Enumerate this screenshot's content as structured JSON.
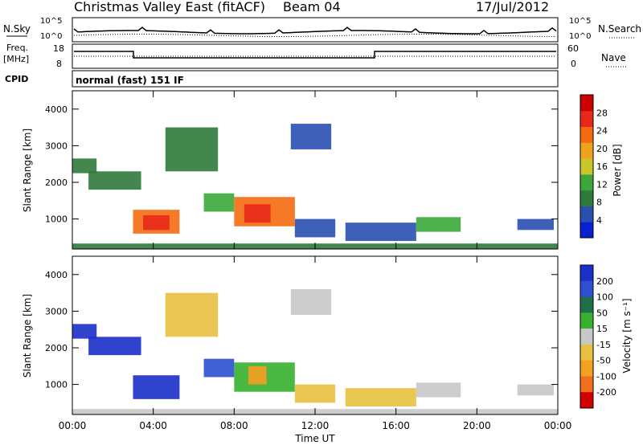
{
  "header": {
    "station": "Christmas Valley East (fitACF)",
    "beam": "Beam 04",
    "date": "17/Jul/2012"
  },
  "top_panels": {
    "nsky_label": "N.Sky",
    "nsearch_label": "N.Search",
    "freq_label_line1": "Freq.",
    "freq_label_line2": "[MHz]",
    "nave_label": "Nave",
    "cpid_label": "CPID",
    "cpid_value": "normal (fast) 151 IF",
    "noise_ticks_left": [
      "10^5",
      "10^0"
    ],
    "noise_ticks_right": [
      "10^5",
      "10^0"
    ],
    "freq_ticks": [
      "18",
      "8"
    ],
    "nave_ticks": [
      "60",
      "0"
    ]
  },
  "xaxis": {
    "label": "Time UT",
    "ticks": [
      "00:00",
      "04:00",
      "08:00",
      "12:00",
      "16:00",
      "20:00",
      "00:00"
    ]
  },
  "colors": {
    "power_scale": [
      "#0a1ed2",
      "#2a4fb0",
      "#2f7a3c",
      "#3aa83a",
      "#c9c52a",
      "#f0a21c",
      "#f46a10",
      "#e8281a",
      "#cc0000"
    ],
    "velocity_scale": [
      "#1a2fc8",
      "#2e4fd0",
      "#1f6f4a",
      "#38b030",
      "#90d840",
      "#c8c8c8",
      "#e8c040",
      "#f4a020",
      "#f07020",
      "#e83020",
      "#d00000"
    ]
  },
  "chart_data": [
    {
      "type": "heatmap",
      "title": "Power",
      "xlabel": "Time UT",
      "ylabel": "Slant Range [km]",
      "colorbar_label": "Power [dB]",
      "colorbar_ticks": [
        "4",
        "8",
        "12",
        "16",
        "20",
        "24",
        "28"
      ],
      "yticks": [
        "1000",
        "2000",
        "3000",
        "4000"
      ],
      "x_range_hours": [
        0,
        24
      ],
      "y_range_km": [
        180,
        4500
      ],
      "regions": [
        {
          "t_start": 0.0,
          "t_end": 24.0,
          "r_start": 180,
          "r_end": 330,
          "value": 10
        },
        {
          "t_start": 0.0,
          "t_end": 1.2,
          "r_start": 2250,
          "r_end": 2650,
          "value": 9
        },
        {
          "t_start": 0.8,
          "t_end": 3.4,
          "r_start": 1800,
          "r_end": 2300,
          "value": 10
        },
        {
          "t_start": 3.0,
          "t_end": 5.3,
          "r_start": 600,
          "r_end": 1250,
          "value": 24
        },
        {
          "t_start": 3.5,
          "t_end": 4.8,
          "r_start": 700,
          "r_end": 1100,
          "value": 28
        },
        {
          "t_start": 4.6,
          "t_end": 7.2,
          "r_start": 2300,
          "r_end": 3500,
          "value": 9
        },
        {
          "t_start": 6.5,
          "t_end": 8.0,
          "r_start": 1200,
          "r_end": 1700,
          "value": 12
        },
        {
          "t_start": 8.0,
          "t_end": 11.0,
          "r_start": 800,
          "r_end": 1600,
          "value": 22
        },
        {
          "t_start": 8.5,
          "t_end": 9.8,
          "r_start": 900,
          "r_end": 1400,
          "value": 28
        },
        {
          "t_start": 10.8,
          "t_end": 12.8,
          "r_start": 2900,
          "r_end": 3600,
          "value": 8
        },
        {
          "t_start": 11.0,
          "t_end": 13.0,
          "r_start": 500,
          "r_end": 1000,
          "value": 7
        },
        {
          "t_start": 13.5,
          "t_end": 17.0,
          "r_start": 400,
          "r_end": 900,
          "value": 6
        },
        {
          "t_start": 17.0,
          "t_end": 19.2,
          "r_start": 650,
          "r_end": 1050,
          "value": 15
        },
        {
          "t_start": 22.0,
          "t_end": 23.8,
          "r_start": 700,
          "r_end": 1000,
          "value": 8
        }
      ]
    },
    {
      "type": "heatmap",
      "title": "Velocity",
      "xlabel": "Time UT",
      "ylabel": "Slant Range [km]",
      "colorbar_label": "Velocity [m s⁻¹]",
      "colorbar_ticks": [
        "200",
        "100",
        "50",
        "15",
        "-15",
        "-50",
        "-100",
        "-200"
      ],
      "yticks": [
        "1000",
        "2000",
        "3000",
        "4000"
      ],
      "x_range_hours": [
        0,
        24
      ],
      "y_range_km": [
        180,
        4500
      ],
      "regions": [
        {
          "t_start": 0.0,
          "t_end": 24.0,
          "r_start": 180,
          "r_end": 330,
          "value": 5
        },
        {
          "t_start": 0.0,
          "t_end": 1.2,
          "r_start": 2250,
          "r_end": 2650,
          "value": 250
        },
        {
          "t_start": 0.8,
          "t_end": 3.4,
          "r_start": 1800,
          "r_end": 2300,
          "value": 220
        },
        {
          "t_start": 3.0,
          "t_end": 5.3,
          "r_start": 600,
          "r_end": 1250,
          "value": 230
        },
        {
          "t_start": 4.6,
          "t_end": 7.2,
          "r_start": 2300,
          "r_end": 3500,
          "value": -40
        },
        {
          "t_start": 6.5,
          "t_end": 8.0,
          "r_start": 1200,
          "r_end": 1700,
          "value": 150
        },
        {
          "t_start": 8.0,
          "t_end": 11.0,
          "r_start": 800,
          "r_end": 1600,
          "value": 40
        },
        {
          "t_start": 8.7,
          "t_end": 9.6,
          "r_start": 1000,
          "r_end": 1500,
          "value": -60
        },
        {
          "t_start": 10.8,
          "t_end": 12.8,
          "r_start": 2900,
          "r_end": 3600,
          "value": -5
        },
        {
          "t_start": 11.0,
          "t_end": 13.0,
          "r_start": 500,
          "r_end": 1000,
          "value": -30
        },
        {
          "t_start": 13.5,
          "t_end": 17.0,
          "r_start": 400,
          "r_end": 900,
          "value": -25
        },
        {
          "t_start": 17.0,
          "t_end": 19.2,
          "r_start": 650,
          "r_end": 1050,
          "value": 0
        },
        {
          "t_start": 22.0,
          "t_end": 23.8,
          "r_start": 700,
          "r_end": 1000,
          "value": 0
        }
      ]
    }
  ]
}
